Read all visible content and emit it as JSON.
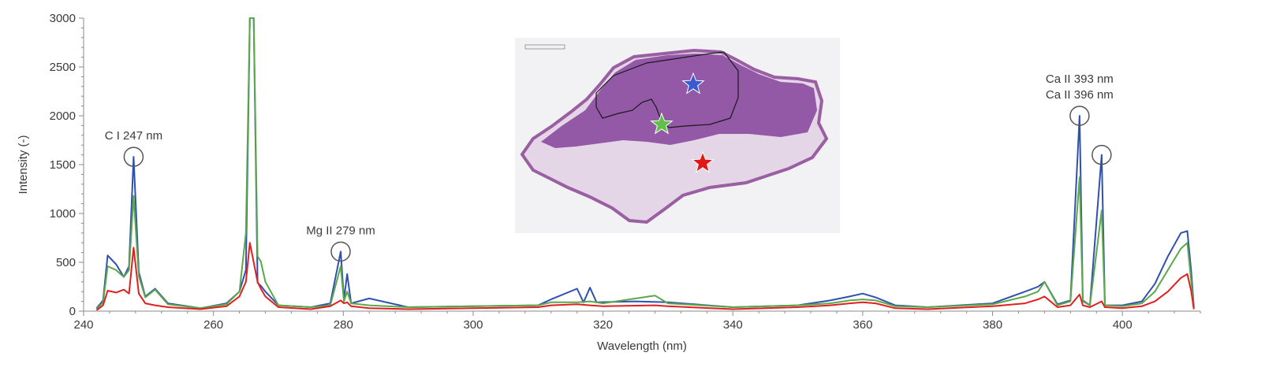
{
  "chart_data": {
    "type": "line",
    "xlabel": "Wavelength (nm)",
    "ylabel": "Intensity (-)",
    "xlim": [
      240,
      412
    ],
    "ylim": [
      0,
      3000
    ],
    "x_ticks": [
      240,
      260,
      280,
      300,
      320,
      340,
      360,
      380,
      400
    ],
    "y_ticks": [
      0,
      500,
      1000,
      1500,
      2000,
      2500,
      3000
    ],
    "grid": false,
    "legend": "none",
    "series": [
      {
        "color": "#3050b0",
        "points": [
          [
            242,
            30
          ],
          [
            243,
            110
          ],
          [
            243.7,
            570
          ],
          [
            245,
            480
          ],
          [
            246.2,
            350
          ],
          [
            247,
            460
          ],
          [
            247.7,
            1580
          ],
          [
            248.5,
            400
          ],
          [
            249.5,
            150
          ],
          [
            251,
            230
          ],
          [
            253,
            80
          ],
          [
            258,
            30
          ],
          [
            262,
            80
          ],
          [
            264,
            200
          ],
          [
            265,
            420
          ],
          [
            265.6,
            3300
          ],
          [
            266.2,
            3300
          ],
          [
            266.8,
            290
          ],
          [
            267.3,
            260
          ],
          [
            268,
            200
          ],
          [
            270,
            60
          ],
          [
            275,
            40
          ],
          [
            278,
            80
          ],
          [
            279.6,
            610
          ],
          [
            280.1,
            120
          ],
          [
            280.6,
            380
          ],
          [
            281.2,
            80
          ],
          [
            284,
            130
          ],
          [
            290,
            40
          ],
          [
            300,
            50
          ],
          [
            310,
            60
          ],
          [
            312,
            120
          ],
          [
            316,
            230
          ],
          [
            317,
            90
          ],
          [
            318,
            240
          ],
          [
            319,
            90
          ],
          [
            325,
            100
          ],
          [
            330,
            90
          ],
          [
            340,
            40
          ],
          [
            350,
            60
          ],
          [
            355,
            110
          ],
          [
            358,
            150
          ],
          [
            360,
            180
          ],
          [
            362,
            140
          ],
          [
            365,
            60
          ],
          [
            370,
            40
          ],
          [
            380,
            80
          ],
          [
            385,
            200
          ],
          [
            387,
            250
          ],
          [
            388,
            300
          ],
          [
            390,
            70
          ],
          [
            392,
            110
          ],
          [
            393.4,
            2000
          ],
          [
            393.9,
            110
          ],
          [
            395,
            60
          ],
          [
            396.8,
            1600
          ],
          [
            397.3,
            60
          ],
          [
            400,
            60
          ],
          [
            403,
            100
          ],
          [
            405,
            280
          ],
          [
            407,
            560
          ],
          [
            409,
            800
          ],
          [
            410,
            820
          ],
          [
            410.6,
            400
          ],
          [
            411,
            40
          ]
        ]
      },
      {
        "color": "#5aa84a",
        "points": [
          [
            242,
            20
          ],
          [
            243,
            90
          ],
          [
            243.7,
            460
          ],
          [
            245,
            420
          ],
          [
            246.2,
            350
          ],
          [
            247,
            420
          ],
          [
            247.7,
            1180
          ],
          [
            248.5,
            360
          ],
          [
            249.5,
            140
          ],
          [
            251,
            220
          ],
          [
            253,
            70
          ],
          [
            258,
            30
          ],
          [
            262,
            70
          ],
          [
            264,
            200
          ],
          [
            265,
            800
          ],
          [
            265.6,
            3300
          ],
          [
            266.2,
            3300
          ],
          [
            266.8,
            560
          ],
          [
            267.3,
            510
          ],
          [
            268,
            300
          ],
          [
            270,
            60
          ],
          [
            275,
            40
          ],
          [
            278,
            60
          ],
          [
            279.6,
            460
          ],
          [
            280.1,
            100
          ],
          [
            280.6,
            200
          ],
          [
            281.2,
            80
          ],
          [
            284,
            60
          ],
          [
            290,
            40
          ],
          [
            300,
            50
          ],
          [
            310,
            60
          ],
          [
            312,
            90
          ],
          [
            316,
            90
          ],
          [
            318,
            100
          ],
          [
            320,
            80
          ],
          [
            328,
            160
          ],
          [
            330,
            80
          ],
          [
            340,
            40
          ],
          [
            350,
            60
          ],
          [
            355,
            80
          ],
          [
            358,
            110
          ],
          [
            360,
            120
          ],
          [
            362,
            110
          ],
          [
            365,
            50
          ],
          [
            370,
            40
          ],
          [
            380,
            70
          ],
          [
            385,
            150
          ],
          [
            387,
            200
          ],
          [
            388,
            300
          ],
          [
            390,
            60
          ],
          [
            392,
            100
          ],
          [
            393.4,
            1370
          ],
          [
            393.9,
            100
          ],
          [
            395,
            60
          ],
          [
            396.8,
            1030
          ],
          [
            397.3,
            60
          ],
          [
            400,
            50
          ],
          [
            403,
            80
          ],
          [
            405,
            200
          ],
          [
            407,
            420
          ],
          [
            409,
            640
          ],
          [
            410,
            700
          ],
          [
            410.6,
            300
          ],
          [
            411,
            30
          ]
        ]
      },
      {
        "color": "#e02020",
        "points": [
          [
            242,
            10
          ],
          [
            243,
            60
          ],
          [
            243.7,
            210
          ],
          [
            245,
            190
          ],
          [
            246.2,
            220
          ],
          [
            247,
            180
          ],
          [
            247.7,
            650
          ],
          [
            248.5,
            180
          ],
          [
            249.5,
            80
          ],
          [
            251,
            60
          ],
          [
            253,
            40
          ],
          [
            258,
            20
          ],
          [
            262,
            50
          ],
          [
            264,
            150
          ],
          [
            265,
            300
          ],
          [
            265.6,
            700
          ],
          [
            266.2,
            500
          ],
          [
            266.8,
            300
          ],
          [
            267.3,
            230
          ],
          [
            268,
            150
          ],
          [
            270,
            40
          ],
          [
            275,
            20
          ],
          [
            278,
            50
          ],
          [
            279.6,
            110
          ],
          [
            280.1,
            80
          ],
          [
            280.6,
            90
          ],
          [
            281.2,
            50
          ],
          [
            284,
            30
          ],
          [
            290,
            20
          ],
          [
            300,
            30
          ],
          [
            310,
            40
          ],
          [
            312,
            60
          ],
          [
            316,
            70
          ],
          [
            318,
            60
          ],
          [
            320,
            50
          ],
          [
            328,
            60
          ],
          [
            330,
            50
          ],
          [
            340,
            20
          ],
          [
            350,
            40
          ],
          [
            355,
            60
          ],
          [
            358,
            80
          ],
          [
            360,
            90
          ],
          [
            362,
            80
          ],
          [
            365,
            30
          ],
          [
            370,
            20
          ],
          [
            380,
            50
          ],
          [
            385,
            80
          ],
          [
            387,
            120
          ],
          [
            388,
            150
          ],
          [
            390,
            40
          ],
          [
            392,
            60
          ],
          [
            393.4,
            170
          ],
          [
            393.9,
            60
          ],
          [
            395,
            40
          ],
          [
            396.8,
            100
          ],
          [
            397.3,
            40
          ],
          [
            400,
            30
          ],
          [
            403,
            50
          ],
          [
            405,
            100
          ],
          [
            407,
            200
          ],
          [
            409,
            340
          ],
          [
            410,
            380
          ],
          [
            410.6,
            200
          ],
          [
            411,
            20
          ]
        ]
      }
    ],
    "annotations": [
      {
        "label_lines": [
          "C I 247 nm"
        ],
        "x": 247.7,
        "y": 1580
      },
      {
        "label_lines": [
          "Mg II 279 nm"
        ],
        "x": 279.6,
        "y": 610
      },
      {
        "label_lines": [
          "Ca II 393 nm",
          "Ca II 396 nm"
        ],
        "x": 393.4,
        "y": 2000
      },
      {
        "label_lines": [],
        "x": 396.8,
        "y": 1600
      }
    ],
    "inset": {
      "content": "tissue section micrograph (H&E stain) with blue, green and red star markers",
      "stars": [
        "#3a5bd0",
        "#62c04a",
        "#e01818"
      ]
    }
  }
}
